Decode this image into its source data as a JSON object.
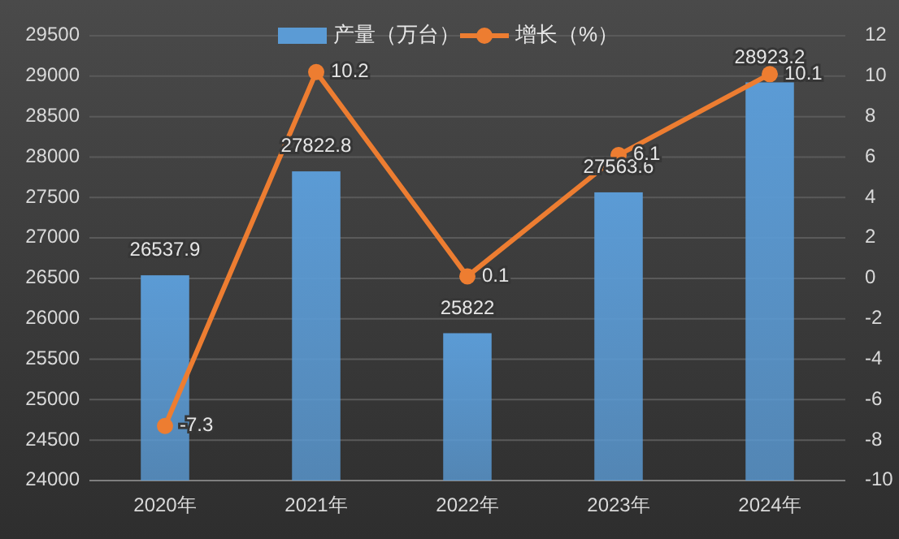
{
  "chart_data": {
    "type": "bar",
    "categories": [
      "2020年",
      "2021年",
      "2022年",
      "2023年",
      "2024年"
    ],
    "series": [
      {
        "name": "产量（万台）",
        "color": "#5b9bd5",
        "values": [
          26537.9,
          27822.8,
          25822,
          27563.6,
          28923.2
        ]
      },
      {
        "name": "增长（%）",
        "type": "line",
        "axis": "y2",
        "color": "#ed7d31",
        "marker": "circle",
        "values": [
          -7.3,
          10.2,
          0.1,
          6.1,
          10.1
        ]
      }
    ],
    "ylim": [
      24000,
      29500
    ],
    "yticks": [
      24000,
      24500,
      25000,
      25500,
      26000,
      26500,
      27000,
      27500,
      28000,
      28500,
      29000,
      29500
    ],
    "y2lim": [
      -10,
      12
    ],
    "y2ticks": [
      -10,
      -8,
      -6,
      -4,
      -2,
      0,
      2,
      4,
      6,
      8,
      10,
      12
    ],
    "data_labels": true,
    "grid": "y",
    "legend": "top"
  }
}
